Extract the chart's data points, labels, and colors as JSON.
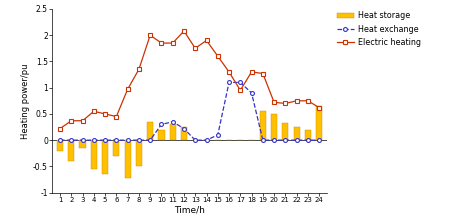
{
  "hours": [
    1,
    2,
    3,
    4,
    5,
    6,
    7,
    8,
    9,
    10,
    11,
    12,
    13,
    14,
    15,
    16,
    17,
    18,
    19,
    20,
    21,
    22,
    23,
    24
  ],
  "heat_storage": [
    -0.2,
    -0.4,
    -0.15,
    -0.55,
    -0.65,
    -0.3,
    -0.72,
    -0.5,
    0.35,
    0.2,
    0.3,
    0.25,
    0.0,
    0.0,
    0.0,
    0.0,
    0.0,
    0.0,
    0.55,
    0.5,
    0.32,
    0.25,
    0.2,
    0.65
  ],
  "heat_exchange": [
    0.0,
    0.0,
    0.0,
    0.0,
    0.0,
    0.0,
    0.0,
    0.0,
    0.0,
    0.3,
    0.35,
    0.22,
    0.0,
    0.0,
    0.1,
    1.1,
    1.1,
    0.9,
    0.0,
    0.0,
    0.0,
    0.0,
    0.0,
    0.0
  ],
  "electric_heating": [
    0.22,
    0.37,
    0.37,
    0.55,
    0.5,
    0.45,
    0.97,
    1.35,
    2.0,
    1.85,
    1.85,
    2.08,
    1.75,
    1.9,
    1.6,
    1.3,
    0.95,
    1.3,
    1.27,
    0.72,
    0.7,
    0.75,
    0.75,
    0.62
  ],
  "ylim": [
    -1.0,
    2.5
  ],
  "yticks": [
    -1.0,
    -0.5,
    0.0,
    0.5,
    1.0,
    1.5,
    2.0,
    2.5
  ],
  "xlabel": "Time/h",
  "ylabel": "Heating power/pu",
  "bar_color": "#FFC000",
  "heat_exchange_color": "#3333CC",
  "electric_heating_color": "#CC3300",
  "legend_labels": [
    "Heat storage",
    "Heat exchange",
    "Electric heating"
  ],
  "background_color": "#ffffff",
  "figwidth": 4.74,
  "figheight": 2.24,
  "dpi": 100
}
